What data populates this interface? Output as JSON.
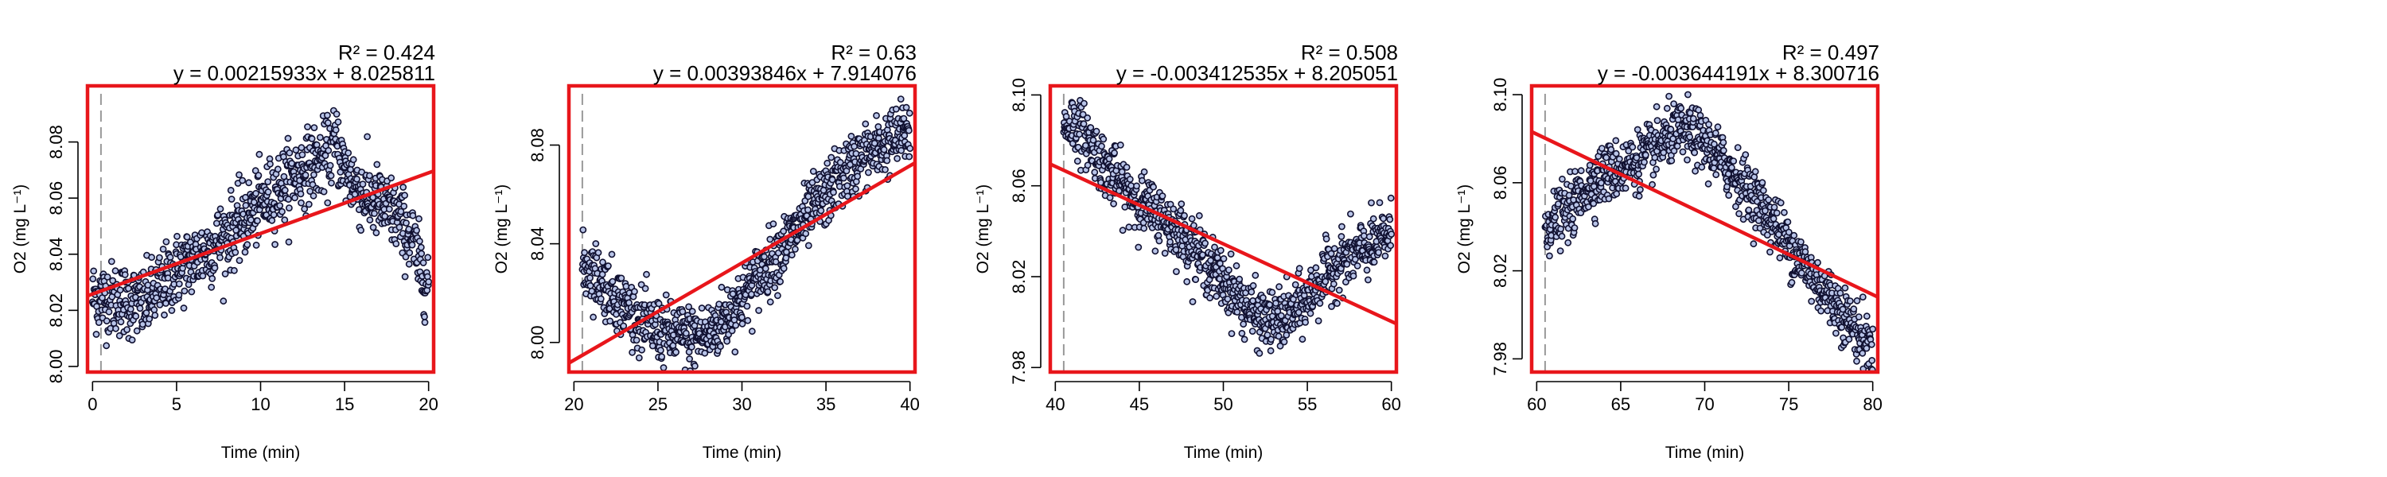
{
  "colors": {
    "frame": "#e8161b",
    "fit_line": "#e8161b",
    "point_stroke": "#101030",
    "point_fill": "#b8c4e8",
    "tick_text": "#000000",
    "vline": "#999999"
  },
  "chart_data": [
    {
      "type": "scatter",
      "title": "",
      "xlabel": "Time (min)",
      "ylabel": "O2 (mg L⁻¹)",
      "r2_label": "R² = 0.424",
      "equation": "y = 0.00215933x + 8.025811",
      "r2": 0.424,
      "slope": 0.00215933,
      "intercept": 8.025811,
      "xlim": [
        -0.3,
        20.3
      ],
      "ylim": [
        7.998,
        8.1
      ],
      "xticks": [
        0,
        5,
        10,
        15,
        20
      ],
      "yticks": [
        8.0,
        8.02,
        8.04,
        8.06,
        8.08
      ],
      "xtick_labels": [
        "0",
        "5",
        "10",
        "15",
        "20"
      ],
      "ytick_labels": [
        "8.00",
        "8.02",
        "8.04",
        "8.06",
        "8.08"
      ],
      "marker_x": 0.5,
      "trend": [
        [
          0,
          8.025
        ],
        [
          1.5,
          8.024
        ],
        [
          3,
          8.022
        ],
        [
          4,
          8.028
        ],
        [
          5,
          8.034
        ],
        [
          6,
          8.038
        ],
        [
          7,
          8.042
        ],
        [
          8,
          8.047
        ],
        [
          9,
          8.052
        ],
        [
          10,
          8.058
        ],
        [
          11,
          8.063
        ],
        [
          12,
          8.068
        ],
        [
          13,
          8.072
        ],
        [
          14,
          8.075
        ],
        [
          14.5,
          8.08
        ],
        [
          15,
          8.07
        ],
        [
          16,
          8.062
        ],
        [
          17,
          8.058
        ],
        [
          18,
          8.054
        ],
        [
          19,
          8.046
        ],
        [
          19.5,
          8.035
        ],
        [
          20,
          8.03
        ]
      ],
      "noise": 0.0065,
      "n_points": 900,
      "x_range": [
        0,
        20
      ]
    },
    {
      "type": "scatter",
      "title": "",
      "xlabel": "Time (min)",
      "ylabel": "O2 (mg L⁻¹)",
      "r2_label": "R² = 0.63",
      "equation": "y = 0.00393846x + 7.914076",
      "r2": 0.63,
      "slope": 0.00393846,
      "intercept": 7.914076,
      "xlim": [
        19.7,
        40.3
      ],
      "ylim": [
        7.988,
        8.104
      ],
      "xticks": [
        20,
        25,
        30,
        35,
        40
      ],
      "yticks": [
        8.0,
        8.04,
        8.08
      ],
      "xtick_labels": [
        "20",
        "25",
        "30",
        "35",
        "40"
      ],
      "ytick_labels": [
        "8.00",
        "8.04",
        "8.08"
      ],
      "marker_x": 20.5,
      "trend": [
        [
          20.5,
          8.03
        ],
        [
          21,
          8.03
        ],
        [
          22,
          8.022
        ],
        [
          23,
          8.015
        ],
        [
          24,
          8.008
        ],
        [
          25,
          8.005
        ],
        [
          26,
          8.003
        ],
        [
          27,
          8.002
        ],
        [
          28,
          8.003
        ],
        [
          29,
          8.01
        ],
        [
          30,
          8.018
        ],
        [
          31,
          8.027
        ],
        [
          32,
          8.035
        ],
        [
          33,
          8.043
        ],
        [
          34,
          8.052
        ],
        [
          35,
          8.06
        ],
        [
          36,
          8.068
        ],
        [
          37,
          8.074
        ],
        [
          38,
          8.078
        ],
        [
          39,
          8.082
        ],
        [
          40,
          8.086
        ]
      ],
      "noise": 0.0065,
      "n_points": 900,
      "x_range": [
        20.5,
        40
      ]
    },
    {
      "type": "scatter",
      "title": "",
      "xlabel": "Time (min)",
      "ylabel": "O2 (mg L⁻¹)",
      "r2_label": "R² = 0.508",
      "equation": "y = -0.003412535x + 8.205051",
      "r2": 0.508,
      "slope": -0.003412535,
      "intercept": 8.205051,
      "xlim": [
        39.7,
        60.3
      ],
      "ylim": [
        7.978,
        8.104
      ],
      "xticks": [
        40,
        45,
        50,
        55,
        60
      ],
      "yticks": [
        7.98,
        8.02,
        8.06,
        8.1
      ],
      "xtick_labels": [
        "40",
        "45",
        "50",
        "55",
        "60"
      ],
      "ytick_labels": [
        "7.98",
        "8.02",
        "8.06",
        "8.10"
      ],
      "marker_x": 40.5,
      "trend": [
        [
          40.5,
          8.085
        ],
        [
          41,
          8.088
        ],
        [
          42,
          8.08
        ],
        [
          43,
          8.068
        ],
        [
          44,
          8.06
        ],
        [
          45,
          8.053
        ],
        [
          46,
          8.048
        ],
        [
          47,
          8.042
        ],
        [
          48,
          8.035
        ],
        [
          49,
          8.026
        ],
        [
          50,
          8.018
        ],
        [
          51,
          8.01
        ],
        [
          52,
          8.002
        ],
        [
          53,
          8.0
        ],
        [
          54,
          8.003
        ],
        [
          55,
          8.01
        ],
        [
          56,
          8.02
        ],
        [
          57,
          8.027
        ],
        [
          58,
          8.03
        ],
        [
          59,
          8.034
        ],
        [
          60,
          8.04
        ]
      ],
      "noise": 0.0065,
      "n_points": 900,
      "x_range": [
        40.5,
        60
      ]
    },
    {
      "type": "scatter",
      "title": "",
      "xlabel": "Time (min)",
      "ylabel": "O2 (mg L⁻¹)",
      "r2_label": "R² = 0.497",
      "equation": "y = -0.003644191x + 8.300716",
      "r2": 0.497,
      "slope": -0.003644191,
      "intercept": 8.300716,
      "xlim": [
        59.7,
        80.3
      ],
      "ylim": [
        7.974,
        8.104
      ],
      "xticks": [
        60,
        65,
        70,
        75,
        80
      ],
      "yticks": [
        7.98,
        8.02,
        8.06,
        8.1
      ],
      "xtick_labels": [
        "60",
        "65",
        "70",
        "75",
        "80"
      ],
      "ytick_labels": [
        "7.98",
        "8.02",
        "8.06",
        "8.10"
      ],
      "marker_x": 60.5,
      "trend": [
        [
          60.5,
          8.04
        ],
        [
          62,
          8.048
        ],
        [
          63,
          8.058
        ],
        [
          64,
          8.064
        ],
        [
          65,
          8.066
        ],
        [
          66,
          8.07
        ],
        [
          67,
          8.075
        ],
        [
          68,
          8.082
        ],
        [
          69,
          8.083
        ],
        [
          70,
          8.078
        ],
        [
          71,
          8.07
        ],
        [
          72,
          8.062
        ],
        [
          73,
          8.053
        ],
        [
          74,
          8.043
        ],
        [
          75,
          8.032
        ],
        [
          76,
          8.022
        ],
        [
          77,
          8.012
        ],
        [
          78,
          8.003
        ],
        [
          79,
          7.993
        ],
        [
          80,
          7.985
        ]
      ],
      "noise": 0.0065,
      "n_points": 900,
      "x_range": [
        60.5,
        80
      ]
    }
  ]
}
